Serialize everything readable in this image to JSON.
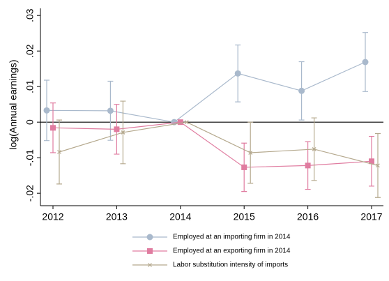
{
  "chart_data": {
    "type": "line",
    "y_label": "log(Annual earnings)",
    "categories": [
      "2012",
      "2013",
      "2014",
      "2015",
      "2016",
      "2017"
    ],
    "series": [
      {
        "name": "Employed at an importing firm in 2014",
        "color": "#a9b9cc",
        "marker": "circle",
        "values": [
          0.0033,
          0.0032,
          0,
          0.0137,
          0.0088,
          0.0169
        ],
        "errors": [
          0.0085,
          0.0083,
          null,
          0.008,
          0.0082,
          0.0083
        ]
      },
      {
        "name": "Employed at an exporting firm in 2014",
        "color": "#e07ca0",
        "marker": "square",
        "values": [
          -0.0016,
          -0.002,
          0,
          -0.0127,
          -0.0122,
          -0.011
        ],
        "errors": [
          0.007,
          0.007,
          null,
          0.0068,
          0.0067,
          0.007
        ]
      },
      {
        "name": "Labor substitution intensity of imports",
        "color": "#b5a98e",
        "marker": "x",
        "values": [
          -0.0084,
          -0.0029,
          0,
          -0.0086,
          -0.0076,
          -0.0122
        ],
        "errors": [
          0.009,
          0.0088,
          null,
          0.0086,
          0.0088,
          0.009
        ]
      }
    ],
    "ylim": [
      -0.0235,
      0.032
    ],
    "yticks": [
      {
        "value": -0.02,
        "label": "-.02"
      },
      {
        "value": -0.01,
        "label": "-.01"
      },
      0,
      {
        "value": 0.01,
        "label": ".01"
      },
      {
        "value": 0.02,
        "label": ".02"
      },
      {
        "value": 0.03,
        "label": ".03"
      }
    ],
    "hline": 0
  }
}
